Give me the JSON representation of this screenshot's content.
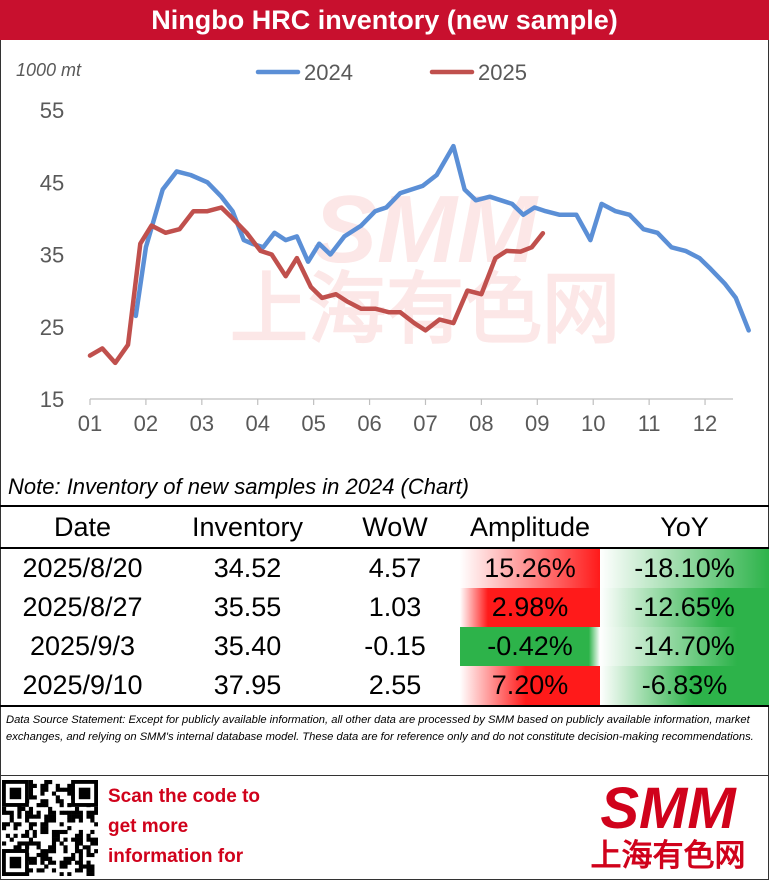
{
  "banner": {
    "title": "Ningbo HRC inventory (new sample)"
  },
  "chart_data": {
    "type": "line",
    "ylabel": "1000 mt",
    "ylim": [
      15,
      55
    ],
    "yticks": [
      15,
      25,
      35,
      45,
      55
    ],
    "x_tick_labels": [
      "01",
      "02",
      "03",
      "04",
      "05",
      "06",
      "07",
      "08",
      "09",
      "10",
      "11",
      "12"
    ],
    "x_unit": "month (tick = start of month)",
    "legend": "top-center",
    "grid": false,
    "watermark": {
      "top": "SMM",
      "bottom": "上海有色网"
    },
    "series": [
      {
        "name": "2024",
        "color": "#5b8fd6",
        "x": [
          1.82,
          2.0,
          2.3,
          2.55,
          2.8,
          3.1,
          3.35,
          3.55,
          3.75,
          3.9,
          4.1,
          4.3,
          4.5,
          4.7,
          4.9,
          5.1,
          5.3,
          5.55,
          5.85,
          6.1,
          6.3,
          6.55,
          6.75,
          6.95,
          7.2,
          7.5,
          7.7,
          7.9,
          8.15,
          8.35,
          8.55,
          8.75,
          8.95,
          9.15,
          9.4,
          9.7,
          9.95,
          10.15,
          10.4,
          10.65,
          10.9,
          11.15,
          11.4,
          11.65,
          11.9,
          12.1,
          12.35,
          12.55,
          12.78
        ],
        "y": [
          26.5,
          36.0,
          44.0,
          46.5,
          46.0,
          45.0,
          43.0,
          41.0,
          37.0,
          36.5,
          36.0,
          38.0,
          37.0,
          37.5,
          34.0,
          36.5,
          35.0,
          37.5,
          39.0,
          41.0,
          41.5,
          43.5,
          44.0,
          44.5,
          46.0,
          50.0,
          44.0,
          42.5,
          43.0,
          42.5,
          42.0,
          40.5,
          41.5,
          41.0,
          40.5,
          40.5,
          37.0,
          42.0,
          41.0,
          40.5,
          38.5,
          38.0,
          36.0,
          35.5,
          34.5,
          33.0,
          31.0,
          29.0,
          24.5
        ]
      },
      {
        "name": "2025",
        "color": "#c0504d",
        "x": [
          1.0,
          1.22,
          1.45,
          1.68,
          1.9,
          2.1,
          2.35,
          2.6,
          2.85,
          3.1,
          3.35,
          3.55,
          3.8,
          4.05,
          4.25,
          4.5,
          4.7,
          4.95,
          5.15,
          5.4,
          5.6,
          5.85,
          6.1,
          6.35,
          6.55,
          6.8,
          7.0,
          7.25,
          7.5,
          7.75,
          8.0,
          8.25,
          8.45,
          8.7,
          8.9,
          9.1
        ],
        "y": [
          21.0,
          22.0,
          20.0,
          22.5,
          36.5,
          39.0,
          38.0,
          38.5,
          41.0,
          41.0,
          41.5,
          40.0,
          38.0,
          35.5,
          35.0,
          32.0,
          34.5,
          30.5,
          29.0,
          29.5,
          28.5,
          27.5,
          27.5,
          27.0,
          27.0,
          25.5,
          24.5,
          26.0,
          25.5,
          30.0,
          29.5,
          34.5,
          35.5,
          35.4,
          36.0,
          37.95
        ]
      }
    ]
  },
  "note": "Note: Inventory of new samples in 2024 (Chart)",
  "table": {
    "headers": [
      "Date",
      "Inventory",
      "WoW",
      "Amplitude",
      "YoY"
    ],
    "rows": [
      [
        "2025/8/20",
        "34.52",
        "4.57",
        "15.26%",
        "-18.10%"
      ],
      [
        "2025/8/27",
        "35.55",
        "1.03",
        "2.98%",
        "-12.65%"
      ],
      [
        "2025/9/3",
        "35.40",
        "-0.15",
        "-0.42%",
        "-14.70%"
      ],
      [
        "2025/9/10",
        "37.95",
        "2.55",
        "7.20%",
        "-6.83%"
      ]
    ],
    "amplitude_values": [
      15.26,
      2.98,
      -0.42,
      7.2
    ],
    "yoy_values": [
      -18.1,
      -12.65,
      -14.7,
      -6.83
    ],
    "colors": {
      "positive": "#ff1a1a",
      "negative": "#2db34a"
    }
  },
  "disclaimer": "Data Source Statement: Except for publicly available information, all other data are processed by SMM based on publicly available information, market exchanges, and relying on SMM's internal database model. These data are for reference only and do not constitute decision-making recommendations.",
  "promo": {
    "line1": "Scan the code to",
    "line2": "get more",
    "line3": "information for"
  },
  "logo": {
    "top": "SMM",
    "bottom": "上海有色网",
    "color": "#d0021b"
  }
}
